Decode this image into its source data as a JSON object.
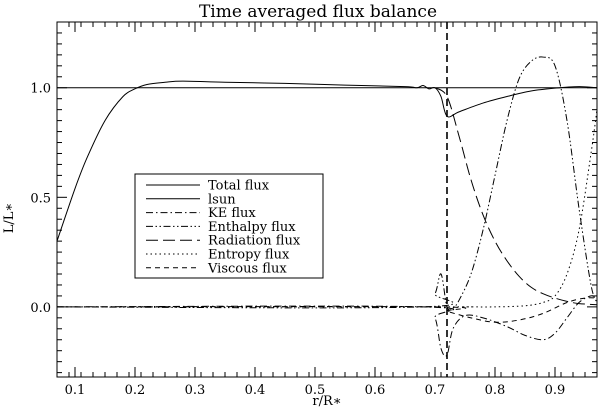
{
  "chart_data": {
    "type": "line",
    "title": "Time averaged flux balance",
    "xlabel": "r/R∗",
    "ylabel": "L/L∗",
    "xlim": [
      0.07,
      0.97
    ],
    "ylim": [
      -0.32,
      1.3
    ],
    "xticks": [
      0.1,
      0.2,
      0.3,
      0.4,
      0.5,
      0.6,
      0.7,
      0.8,
      0.9
    ],
    "xtick_labels": [
      "0.1",
      "0.2",
      "0.3",
      "0.4",
      "0.5",
      "0.6",
      "0.7",
      "0.8",
      "0.9"
    ],
    "yticks": [
      0.0,
      0.5,
      1.0
    ],
    "ytick_labels": [
      "0.0",
      "0.5",
      "1.0"
    ],
    "grid": false,
    "legend_position": "center-left",
    "vline": {
      "x": 0.72,
      "style": "dashed"
    },
    "series": [
      {
        "name": "Total flux",
        "style": "solid",
        "x": [
          0.07,
          0.1,
          0.12,
          0.15,
          0.18,
          0.2,
          0.22,
          0.25,
          0.28,
          0.35,
          0.45,
          0.55,
          0.65,
          0.67,
          0.68,
          0.69,
          0.7,
          0.71,
          0.72,
          0.74,
          0.78,
          0.82,
          0.86,
          0.9,
          0.94,
          0.97
        ],
        "y": [
          0.3,
          0.54,
          0.68,
          0.85,
          0.96,
          0.995,
          1.015,
          1.025,
          1.03,
          1.025,
          1.02,
          1.012,
          1.005,
          1.0,
          1.01,
          0.995,
          1.0,
          0.96,
          0.87,
          0.89,
          0.93,
          0.96,
          0.985,
          0.998,
          1.005,
          1.0
        ]
      },
      {
        "name": "lsun",
        "style": "solid",
        "x": [
          0.07,
          0.97
        ],
        "y": [
          1.0,
          1.0
        ]
      },
      {
        "name": "KE flux",
        "style": "dashdot",
        "x": [
          0.07,
          0.68,
          0.7,
          0.71,
          0.72,
          0.73,
          0.75,
          0.78,
          0.82,
          0.85,
          0.88,
          0.9,
          0.92,
          0.94,
          0.96,
          0.97
        ],
        "y": [
          0.0,
          0.0,
          -0.05,
          -0.19,
          -0.22,
          -0.1,
          -0.04,
          -0.05,
          -0.09,
          -0.13,
          -0.15,
          -0.12,
          -0.05,
          0.02,
          0.05,
          0.04
        ]
      },
      {
        "name": "Enthalpy flux",
        "style": "dashdotdot",
        "x": [
          0.07,
          0.68,
          0.7,
          0.71,
          0.72,
          0.73,
          0.74,
          0.76,
          0.78,
          0.8,
          0.82,
          0.84,
          0.86,
          0.88,
          0.9,
          0.92,
          0.94,
          0.96,
          0.97
        ],
        "y": [
          0.0,
          0.0,
          0.06,
          0.15,
          0.0,
          -0.005,
          0.03,
          0.15,
          0.35,
          0.6,
          0.85,
          1.04,
          1.12,
          1.14,
          1.1,
          0.85,
          0.45,
          0.1,
          0.02
        ]
      },
      {
        "name": "Radiation flux",
        "style": "longdash",
        "x": [
          0.7,
          0.72,
          0.74,
          0.76,
          0.78,
          0.8,
          0.82,
          0.84,
          0.86,
          0.88,
          0.9,
          0.92,
          0.94,
          0.97
        ],
        "y": [
          1.0,
          0.96,
          0.78,
          0.58,
          0.42,
          0.3,
          0.21,
          0.14,
          0.09,
          0.06,
          0.04,
          0.025,
          0.015,
          0.01
        ]
      },
      {
        "name": "Entropy flux",
        "style": "dotted",
        "x": [
          0.07,
          0.7,
          0.75,
          0.8,
          0.85,
          0.88,
          0.9,
          0.92,
          0.94,
          0.96,
          0.97
        ],
        "y": [
          0.0,
          0.0,
          0.0,
          0.0,
          0.005,
          0.02,
          0.05,
          0.15,
          0.35,
          0.7,
          0.9
        ]
      },
      {
        "name": "Viscous flux",
        "style": "shortdash",
        "x": [
          0.07,
          0.7,
          0.72,
          0.76,
          0.8,
          0.84,
          0.88,
          0.92,
          0.95,
          0.97
        ],
        "y": [
          0.0,
          0.0,
          -0.02,
          -0.05,
          -0.07,
          -0.06,
          -0.03,
          0.02,
          0.04,
          0.04
        ]
      }
    ]
  }
}
